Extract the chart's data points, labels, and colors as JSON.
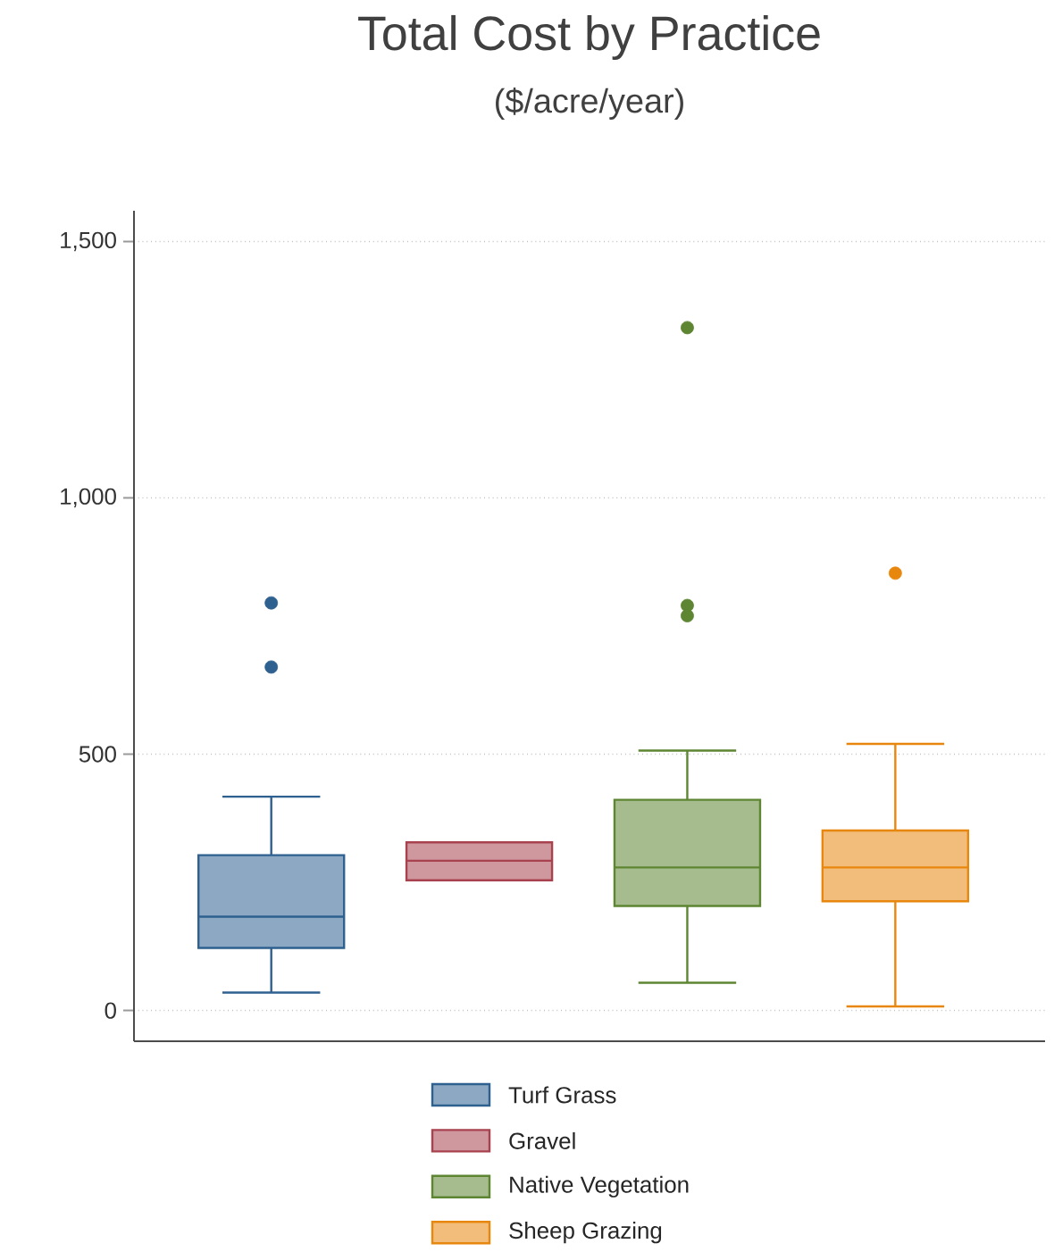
{
  "chart_data": {
    "type": "box",
    "title": "Total Cost by Practice",
    "subtitle": "($/acre/year)",
    "categories": [
      null,
      null,
      null,
      null
    ],
    "series": [
      {
        "name": "Turf Grass",
        "color": "#2e6090",
        "boxes": [
          {
            "low": 35,
            "q1": 122,
            "median": 183,
            "q3": 303,
            "high": 417,
            "outliers": [
              795,
              670
            ]
          },
          null,
          null,
          null
        ]
      },
      {
        "name": "Gravel",
        "color": "#a8424f",
        "boxes": [
          null,
          {
            "low": 254,
            "q1": 254,
            "median": 292,
            "q3": 328,
            "high": 328
          },
          null,
          null
        ]
      },
      {
        "name": "Native Vegetation",
        "color": "#5d8532",
        "boxes": [
          null,
          null,
          {
            "low": 54,
            "q1": 204,
            "median": 279,
            "q3": 411,
            "high": 507,
            "outliers": [
              1332,
              790,
              770
            ]
          },
          null
        ]
      },
      {
        "name": "Sheep Grazing",
        "color": "#e8870e",
        "boxes": [
          null,
          null,
          null,
          {
            "low": 8,
            "q1": 213,
            "median": 279,
            "q3": 351,
            "high": 520,
            "outliers": [
              853
            ]
          }
        ]
      }
    ],
    "ylim": [
      -60,
      1560
    ],
    "yticks": [
      {
        "value": 0,
        "label": "0"
      },
      {
        "value": 500,
        "label": "500"
      },
      {
        "value": 1000,
        "label": "1,000"
      },
      {
        "value": 1500,
        "label": "1,500"
      }
    ],
    "grid": "y",
    "legend": "bottom",
    "tick_labels": "y"
  }
}
